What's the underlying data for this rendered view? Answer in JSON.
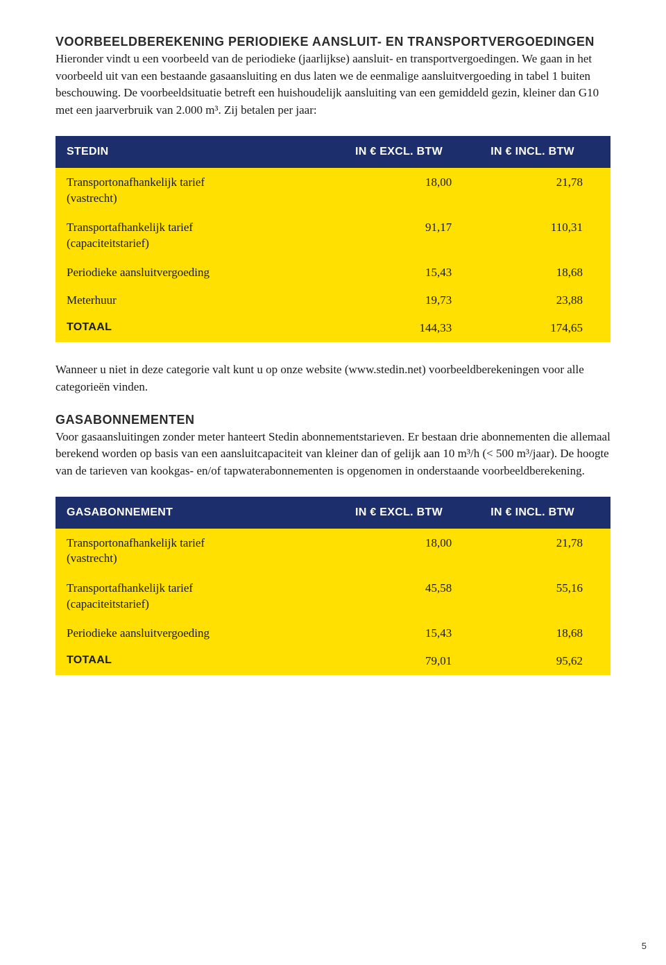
{
  "section1": {
    "heading": "VOORBEELDBEREKENING PERIODIEKE AANSLUIT- EN TRANSPORTVERGOEDINGEN",
    "p1": "Hieronder vindt u een voorbeeld van de periodieke (jaarlijkse) aansluit- en transportvergoedingen. We gaan in het voorbeeld uit van een bestaande gasaansluiting en dus laten we de eenmalige aansluitvergoeding in tabel 1 buiten beschouwing. De voorbeeldsituatie betreft een huishoudelijk aansluiting van een gemiddeld gezin, kleiner dan G10 met een jaarverbruik van 2.000 m³. Zij betalen per jaar:"
  },
  "table1": {
    "headers": {
      "c0": "STEDIN",
      "c1": "IN € EXCL. BTW",
      "c2": "IN € INCL. BTW"
    },
    "rows": {
      "r0": {
        "label": "Transportonafhankelijk tarief",
        "sub": "(vastrecht)",
        "excl": "18,00",
        "incl": "21,78"
      },
      "r1": {
        "label": "Transportafhankelijk tarief",
        "sub": "(capaciteitstarief)",
        "excl": "91,17",
        "incl": "110,31"
      },
      "r2": {
        "label": "Periodieke aansluitvergoeding",
        "excl": "15,43",
        "incl": "18,68"
      },
      "r3": {
        "label": "Meterhuur",
        "excl": "19,73",
        "incl": "23,88"
      },
      "total": {
        "label": "TOTAAL",
        "excl": "144,33",
        "incl": "174,65"
      }
    }
  },
  "section2": {
    "p1": "Wanneer u niet in deze categorie valt kunt u op onze website (www.stedin.net) voorbeeldberekeningen voor alle categorieën vinden."
  },
  "section3": {
    "heading": "GASABONNEMENTEN",
    "p1": "Voor gasaansluitingen zonder meter hanteert Stedin abonnementstarieven. Er bestaan drie abonnementen die allemaal berekend worden op basis van een aansluitcapaciteit van kleiner dan of gelijk aan 10 m³/h (< 500 m³/jaar). De hoogte van de tarieven van kookgas- en/of tapwaterabonnementen is opgenomen in onderstaande voorbeeldberekening."
  },
  "table2": {
    "headers": {
      "c0": "GASABONNEMENT",
      "c1": "IN € EXCL. BTW",
      "c2": "IN € INCL. BTW"
    },
    "rows": {
      "r0": {
        "label": "Transportonafhankelijk tarief",
        "sub": "(vastrecht)",
        "excl": "18,00",
        "incl": "21,78"
      },
      "r1": {
        "label": "Transportafhankelijk tarief",
        "sub": "(capaciteitstarief)",
        "excl": "45,58",
        "incl": "55,16"
      },
      "r2": {
        "label": "Periodieke aansluitvergoeding",
        "excl": "15,43",
        "incl": "18,68"
      },
      "total": {
        "label": "TOTAAL",
        "excl": "79,01",
        "incl": "95,62"
      }
    }
  },
  "page_number": "5"
}
